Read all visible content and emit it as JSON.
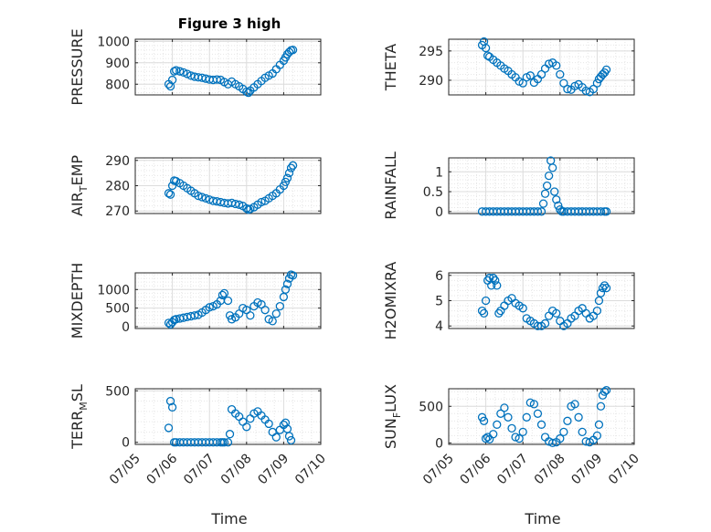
{
  "figure": {
    "title": "Figure 3 high",
    "xlabel": "Time"
  },
  "x_ticks": [
    "07/05",
    "07/06",
    "07/07",
    "07/08",
    "07/09",
    "07/10"
  ],
  "chart_data": [
    {
      "type": "scatter",
      "ylabel": "PRESSURE",
      "xlim": [
        0,
        5
      ],
      "ylim": [
        750,
        1010
      ],
      "yticks": [
        800,
        900,
        1000
      ],
      "x": [
        0.9,
        0.95,
        1.0,
        1.05,
        1.1,
        1.2,
        1.3,
        1.4,
        1.5,
        1.6,
        1.7,
        1.8,
        1.9,
        2.0,
        2.1,
        2.2,
        2.3,
        2.4,
        2.5,
        2.6,
        2.7,
        2.8,
        2.9,
        3.0,
        3.05,
        3.1,
        3.2,
        3.3,
        3.4,
        3.5,
        3.6,
        3.7,
        3.8,
        3.9,
        4.0,
        4.05,
        4.1,
        4.15,
        4.2,
        4.25
      ],
      "y": [
        800,
        790,
        820,
        860,
        865,
        860,
        855,
        848,
        840,
        835,
        832,
        830,
        826,
        822,
        820,
        822,
        820,
        810,
        800,
        812,
        800,
        790,
        778,
        765,
        760,
        770,
        785,
        800,
        815,
        830,
        840,
        850,
        870,
        890,
        910,
        925,
        940,
        950,
        958,
        960
      ]
    },
    {
      "type": "scatter",
      "ylabel": "THETA",
      "xlim": [
        0,
        5
      ],
      "ylim": [
        287.5,
        297
      ],
      "yticks": [
        290,
        295
      ],
      "x": [
        0.9,
        0.95,
        1.0,
        1.05,
        1.1,
        1.2,
        1.3,
        1.4,
        1.5,
        1.6,
        1.7,
        1.8,
        1.9,
        2.0,
        2.1,
        2.2,
        2.3,
        2.4,
        2.5,
        2.6,
        2.7,
        2.8,
        2.9,
        3.0,
        3.1,
        3.2,
        3.3,
        3.4,
        3.5,
        3.6,
        3.7,
        3.8,
        3.9,
        4.0,
        4.05,
        4.1,
        4.15,
        4.2,
        4.25
      ],
      "y": [
        296,
        296.6,
        295.5,
        294.2,
        294,
        293.5,
        293,
        292.5,
        292,
        291.6,
        291,
        290.5,
        289.8,
        289.5,
        290.5,
        290.8,
        289.6,
        290.2,
        291,
        292,
        292.8,
        293,
        292.5,
        291,
        289.5,
        288.5,
        288.4,
        289,
        289.3,
        288.8,
        288.2,
        288,
        288.5,
        289.5,
        290.2,
        290.6,
        291,
        291.3,
        291.8
      ]
    },
    {
      "type": "scatter",
      "ylabel": "AIR_TEMP",
      "xlim": [
        0,
        5
      ],
      "ylim": [
        269,
        291
      ],
      "yticks": [
        270,
        280,
        290
      ],
      "x": [
        0.9,
        0.95,
        1.0,
        1.05,
        1.1,
        1.2,
        1.3,
        1.4,
        1.5,
        1.6,
        1.7,
        1.8,
        1.9,
        2.0,
        2.1,
        2.2,
        2.3,
        2.4,
        2.5,
        2.6,
        2.7,
        2.8,
        2.9,
        3.0,
        3.05,
        3.1,
        3.2,
        3.3,
        3.4,
        3.5,
        3.6,
        3.7,
        3.8,
        3.9,
        4.0,
        4.05,
        4.1,
        4.15,
        4.2,
        4.25
      ],
      "y": [
        277,
        276.5,
        280,
        282,
        281.8,
        281,
        280,
        279,
        278,
        277,
        276,
        275.5,
        275,
        274.5,
        274,
        273.8,
        273.5,
        273.2,
        273,
        273.2,
        272.8,
        272.5,
        272,
        271,
        270.5,
        270.8,
        271.5,
        272.5,
        273.5,
        274,
        275,
        276,
        277,
        278.5,
        280,
        281.5,
        283,
        285,
        287,
        288
      ]
    },
    {
      "type": "scatter",
      "ylabel": "RAINFALL",
      "xlim": [
        0,
        5
      ],
      "ylim": [
        -0.05,
        1.35
      ],
      "yticks": [
        0,
        0.5,
        1
      ],
      "x": [
        0.9,
        1.0,
        1.1,
        1.2,
        1.3,
        1.4,
        1.5,
        1.6,
        1.7,
        1.8,
        1.9,
        2.0,
        2.1,
        2.2,
        2.3,
        2.4,
        2.5,
        2.55,
        2.6,
        2.65,
        2.7,
        2.75,
        2.8,
        2.85,
        2.9,
        2.95,
        3.0,
        3.05,
        3.1,
        3.2,
        3.3,
        3.4,
        3.5,
        3.6,
        3.7,
        3.8,
        3.9,
        4.0,
        4.1,
        4.2,
        4.25
      ],
      "y": [
        0,
        0,
        0,
        0,
        0,
        0,
        0,
        0,
        0,
        0,
        0,
        0,
        0,
        0,
        0,
        0,
        0,
        0.2,
        0.45,
        0.65,
        0.9,
        1.28,
        1.1,
        0.5,
        0.3,
        0.15,
        0.05,
        0,
        0,
        0,
        0,
        0,
        0,
        0,
        0,
        0,
        0,
        0,
        0,
        0,
        0
      ]
    },
    {
      "type": "scatter",
      "ylabel": "MIXDEPTH",
      "xlim": [
        0,
        5
      ],
      "ylim": [
        -50,
        1450
      ],
      "yticks": [
        0,
        500,
        1000
      ],
      "x": [
        0.9,
        0.95,
        1.0,
        1.05,
        1.1,
        1.2,
        1.3,
        1.4,
        1.5,
        1.6,
        1.7,
        1.8,
        1.9,
        2.0,
        2.1,
        2.2,
        2.3,
        2.35,
        2.4,
        2.5,
        2.55,
        2.6,
        2.7,
        2.8,
        2.9,
        3.0,
        3.1,
        3.2,
        3.3,
        3.4,
        3.5,
        3.6,
        3.7,
        3.8,
        3.9,
        4.0,
        4.05,
        4.1,
        4.15,
        4.2,
        4.25
      ],
      "y": [
        100,
        60,
        120,
        180,
        200,
        220,
        240,
        260,
        280,
        300,
        320,
        380,
        450,
        520,
        550,
        600,
        700,
        850,
        900,
        700,
        300,
        200,
        250,
        350,
        500,
        450,
        300,
        550,
        650,
        600,
        450,
        200,
        150,
        350,
        550,
        800,
        1000,
        1150,
        1300,
        1400,
        1380
      ]
    },
    {
      "type": "scatter",
      "ylabel": "H2OMIXRA",
      "xlim": [
        0,
        5
      ],
      "ylim": [
        3.9,
        6.1
      ],
      "yticks": [
        4,
        5,
        6
      ],
      "x": [
        0.9,
        0.95,
        1.0,
        1.05,
        1.1,
        1.15,
        1.2,
        1.25,
        1.3,
        1.35,
        1.4,
        1.5,
        1.6,
        1.7,
        1.8,
        1.9,
        2.0,
        2.1,
        2.2,
        2.3,
        2.4,
        2.5,
        2.6,
        2.7,
        2.8,
        2.9,
        3.0,
        3.1,
        3.2,
        3.3,
        3.4,
        3.5,
        3.6,
        3.7,
        3.8,
        3.9,
        4.0,
        4.05,
        4.1,
        4.15,
        4.2,
        4.25
      ],
      "y": [
        4.6,
        4.5,
        5.0,
        5.8,
        5.9,
        5.6,
        5.9,
        5.8,
        5.6,
        4.5,
        4.6,
        4.8,
        5.0,
        5.1,
        4.9,
        4.8,
        4.7,
        4.3,
        4.2,
        4.1,
        4.0,
        4.0,
        4.1,
        4.4,
        4.6,
        4.5,
        4.2,
        4.0,
        4.1,
        4.3,
        4.4,
        4.6,
        4.7,
        4.5,
        4.3,
        4.4,
        4.6,
        5.0,
        5.3,
        5.5,
        5.6,
        5.5
      ]
    },
    {
      "type": "scatter",
      "ylabel": "TERR_MSL",
      "xlim": [
        0,
        5
      ],
      "ylim": [
        -20,
        520
      ],
      "yticks": [
        0,
        500
      ],
      "x": [
        0.9,
        0.95,
        1.0,
        1.05,
        1.1,
        1.2,
        1.3,
        1.4,
        1.5,
        1.6,
        1.7,
        1.8,
        1.9,
        2.0,
        2.1,
        2.2,
        2.3,
        2.35,
        2.4,
        2.5,
        2.55,
        2.6,
        2.7,
        2.8,
        2.9,
        3.0,
        3.1,
        3.2,
        3.3,
        3.4,
        3.5,
        3.6,
        3.7,
        3.8,
        3.9,
        4.0,
        4.05,
        4.1,
        4.15,
        4.2
      ],
      "y": [
        140,
        400,
        340,
        0,
        0,
        0,
        0,
        0,
        0,
        0,
        0,
        0,
        0,
        0,
        0,
        0,
        0,
        0,
        0,
        0,
        80,
        320,
        280,
        250,
        200,
        150,
        230,
        280,
        300,
        260,
        220,
        180,
        100,
        50,
        120,
        170,
        190,
        130,
        60,
        20
      ]
    },
    {
      "type": "scatter",
      "ylabel": "SUN_FLUX",
      "xlim": [
        0,
        5
      ],
      "ylim": [
        -20,
        740
      ],
      "yticks": [
        0,
        500
      ],
      "x": [
        0.9,
        0.95,
        1.0,
        1.05,
        1.1,
        1.2,
        1.3,
        1.4,
        1.5,
        1.6,
        1.7,
        1.8,
        1.9,
        2.0,
        2.1,
        2.2,
        2.3,
        2.4,
        2.5,
        2.6,
        2.7,
        2.8,
        2.9,
        3.0,
        3.1,
        3.2,
        3.3,
        3.4,
        3.5,
        3.6,
        3.7,
        3.8,
        3.9,
        4.0,
        4.05,
        4.1,
        4.15,
        4.2,
        4.25
      ],
      "y": [
        350,
        300,
        60,
        80,
        50,
        120,
        250,
        400,
        480,
        350,
        200,
        80,
        60,
        150,
        350,
        550,
        530,
        400,
        250,
        80,
        20,
        0,
        10,
        60,
        150,
        300,
        500,
        530,
        350,
        150,
        20,
        10,
        40,
        100,
        250,
        500,
        650,
        700,
        720
      ]
    }
  ]
}
